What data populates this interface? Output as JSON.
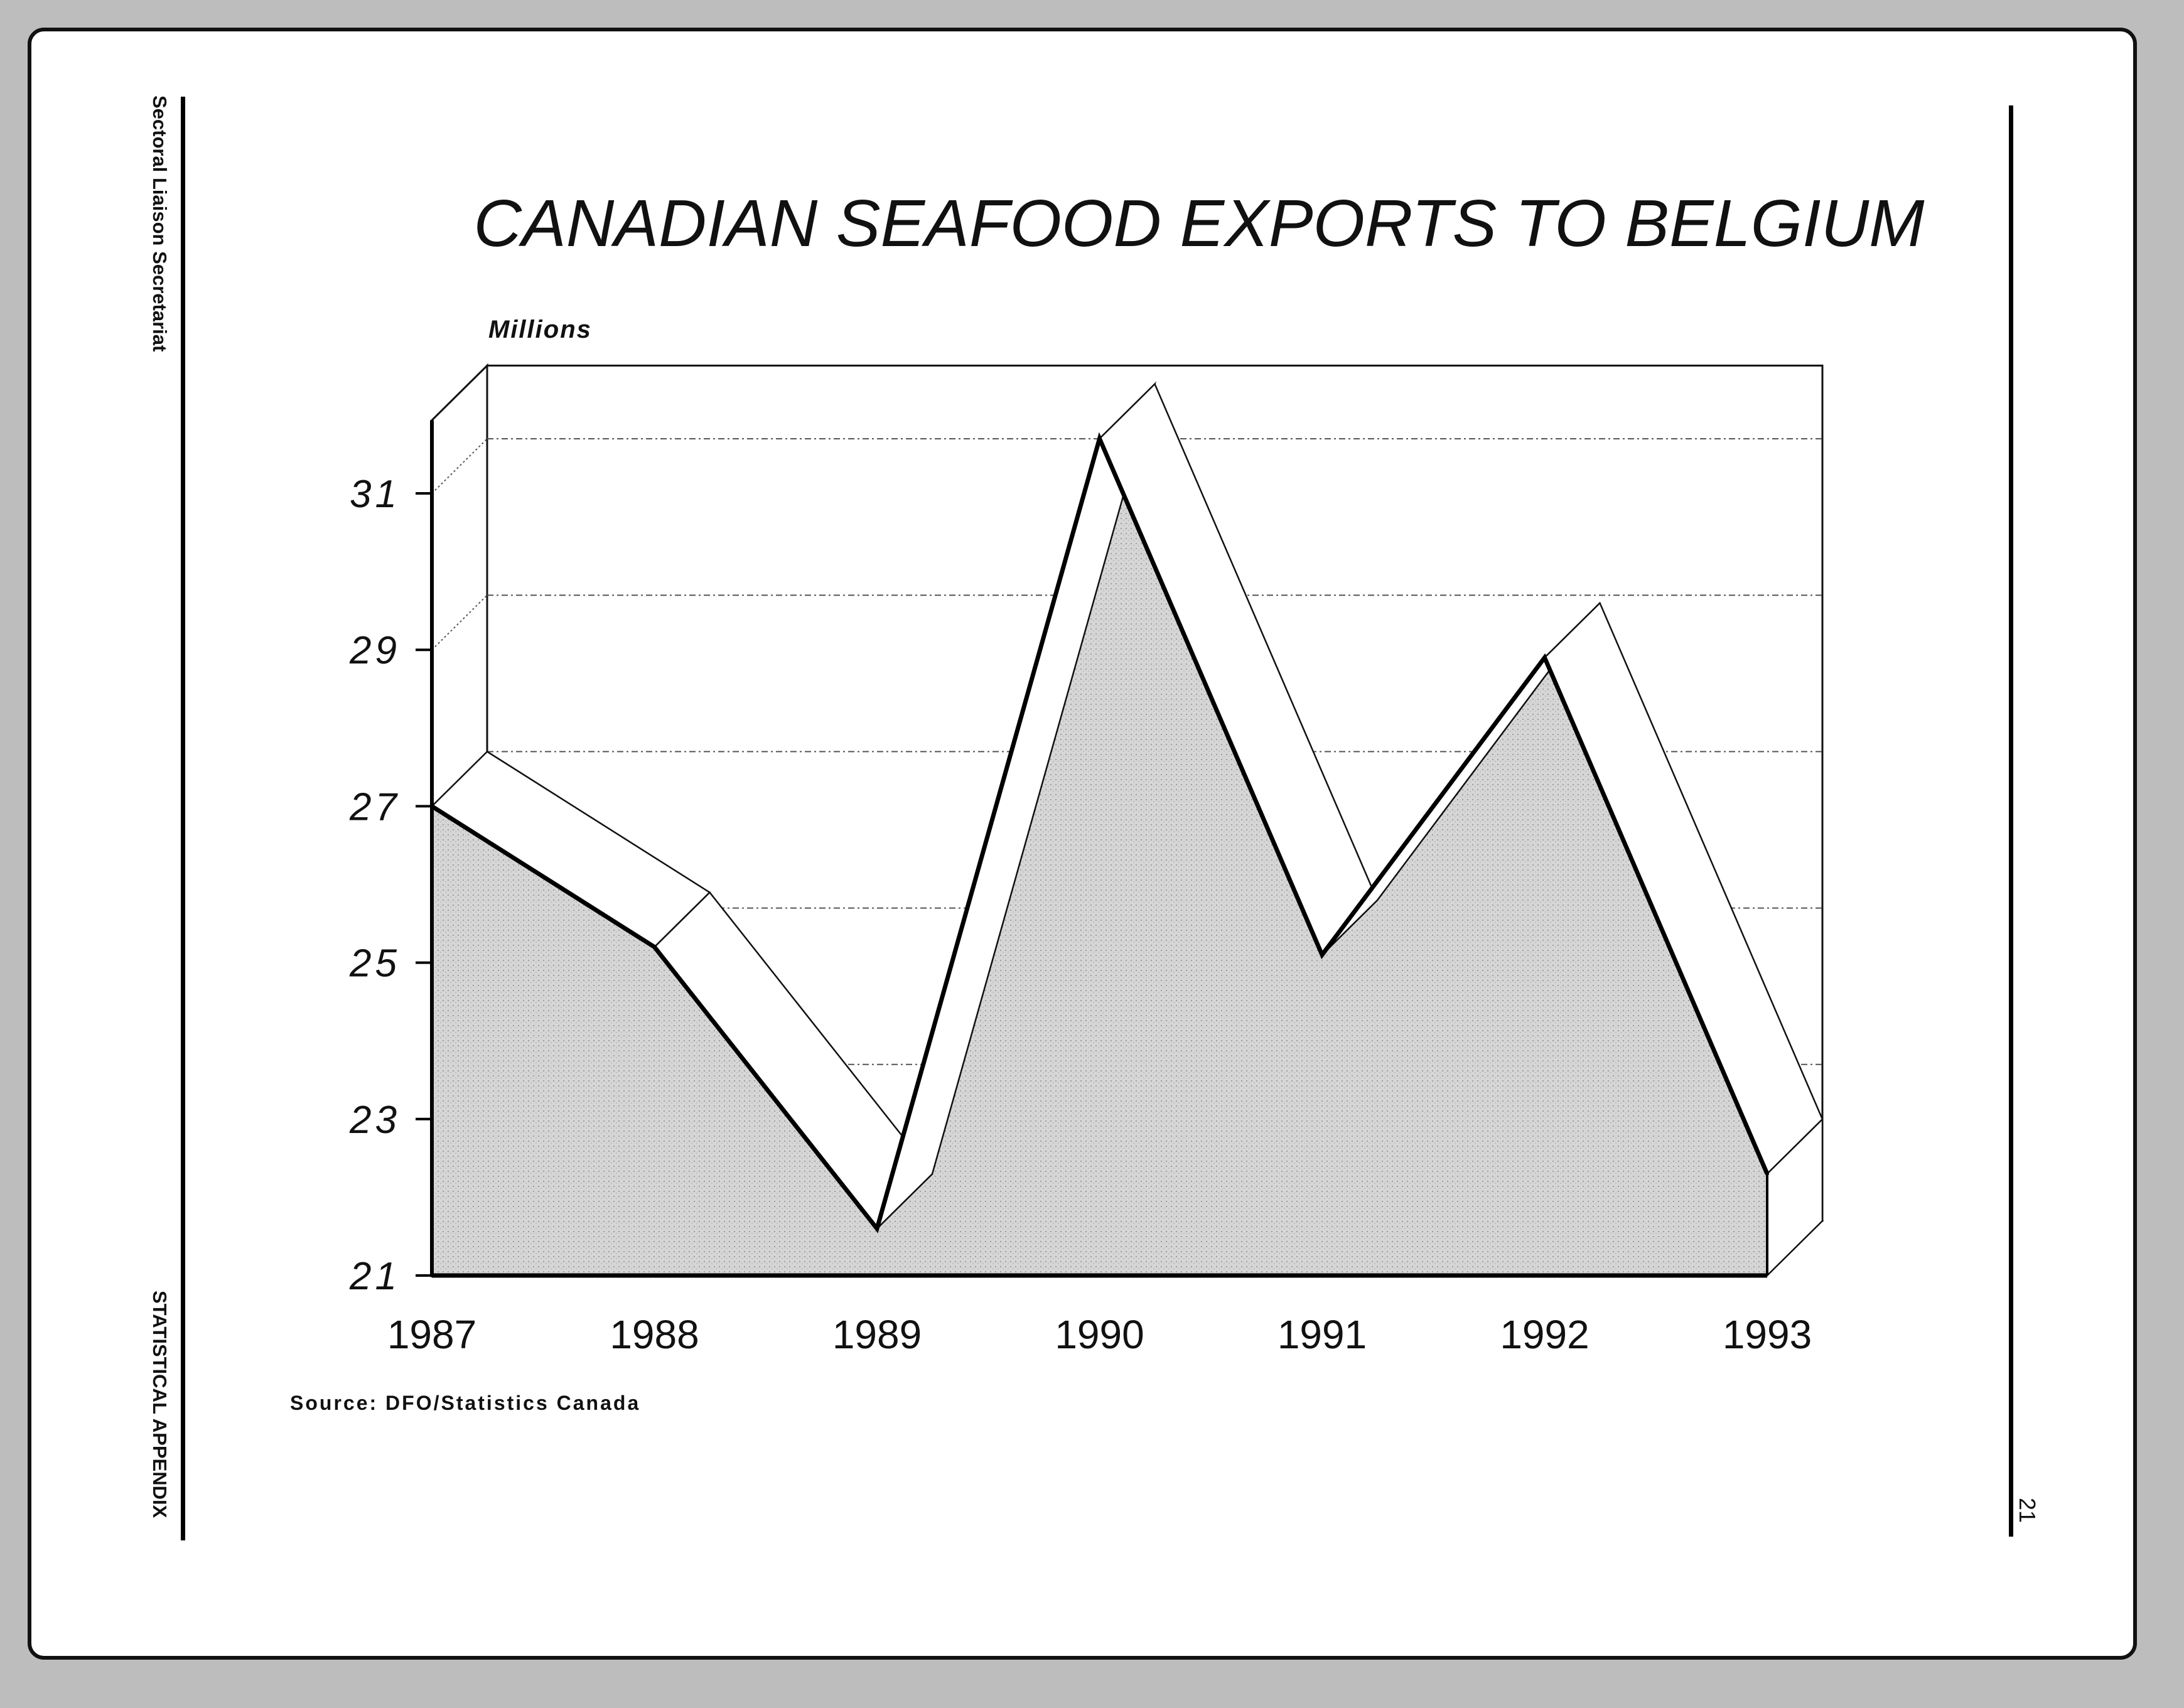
{
  "page": {
    "left_side_top": "Sectoral Liaison Secretariat",
    "left_side_bottom": "STATISTICAL APPENDIX",
    "page_number": "21"
  },
  "chart_data": {
    "type": "area",
    "title": "CANADIAN SEAFOOD EXPORTS TO BELGIUM",
    "unit_label": "Millions",
    "xlabel": "",
    "ylabel": "",
    "categories": [
      "1987",
      "1988",
      "1989",
      "1990",
      "1991",
      "1992",
      "1993"
    ],
    "values": [
      27.0,
      25.2,
      21.6,
      31.7,
      25.1,
      28.9,
      22.3
    ],
    "y_ticks": [
      "21",
      "23",
      "25",
      "27",
      "29",
      "31"
    ],
    "ylim": [
      21,
      32
    ],
    "grid": true,
    "style": "3d-ribbon",
    "source": "Source: DFO/Statistics Canada",
    "colors": {
      "fill": "#d2d2d2",
      "line": "#000000",
      "ribbon": "#ffffff"
    }
  }
}
